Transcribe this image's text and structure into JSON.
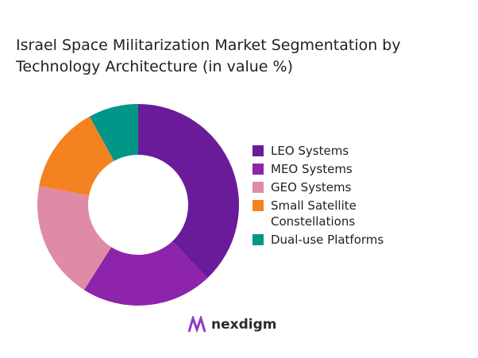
{
  "chart_data": {
    "type": "pie",
    "donut": true,
    "title": "Israel Space Militarization Market Segmentation by Technology Architecture (in value %)",
    "categories": [
      "LEO Systems",
      "MEO Systems",
      "GEO Systems",
      "Small Satellite Constellations",
      "Dual-use Platforms"
    ],
    "values": [
      38,
      21,
      19,
      14,
      8
    ],
    "colors": [
      "#6a1b9a",
      "#8e24aa",
      "#e08ba6",
      "#f58220",
      "#009688"
    ],
    "legend_position": "right"
  },
  "brand": {
    "name": "nexdigm",
    "color": "#7b2d9e"
  }
}
